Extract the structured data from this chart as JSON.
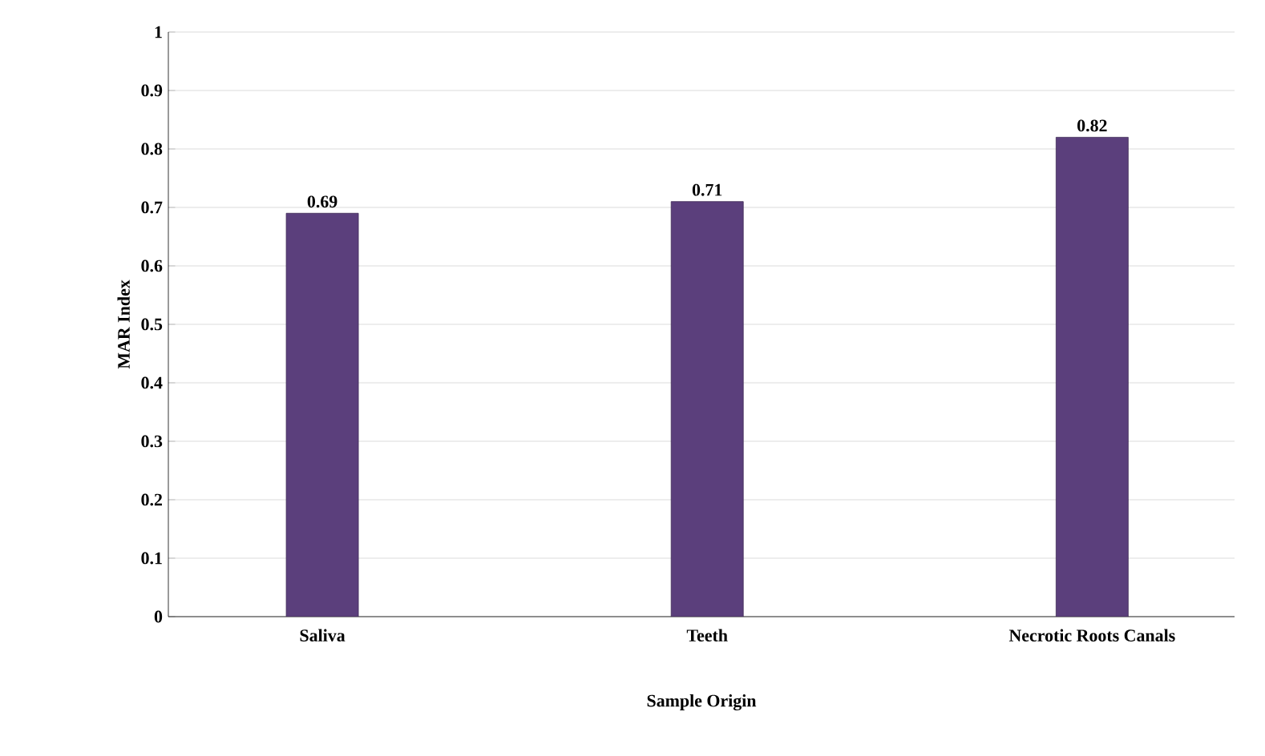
{
  "chart_data": {
    "type": "bar",
    "xlabel": "Sample Origin",
    "ylabel": "MAR Index",
    "categories": [
      "Saliva",
      "Teeth",
      "Necrotic Roots Canals"
    ],
    "values": [
      0.69,
      0.71,
      0.82
    ],
    "color": "#5b3f7c",
    "ylim": [
      0,
      1
    ],
    "yticks": [
      0,
      0.1,
      0.2,
      0.3,
      0.4,
      0.5,
      0.6,
      0.7,
      0.8,
      0.9,
      1
    ],
    "grid": "y",
    "data_labels": true
  }
}
